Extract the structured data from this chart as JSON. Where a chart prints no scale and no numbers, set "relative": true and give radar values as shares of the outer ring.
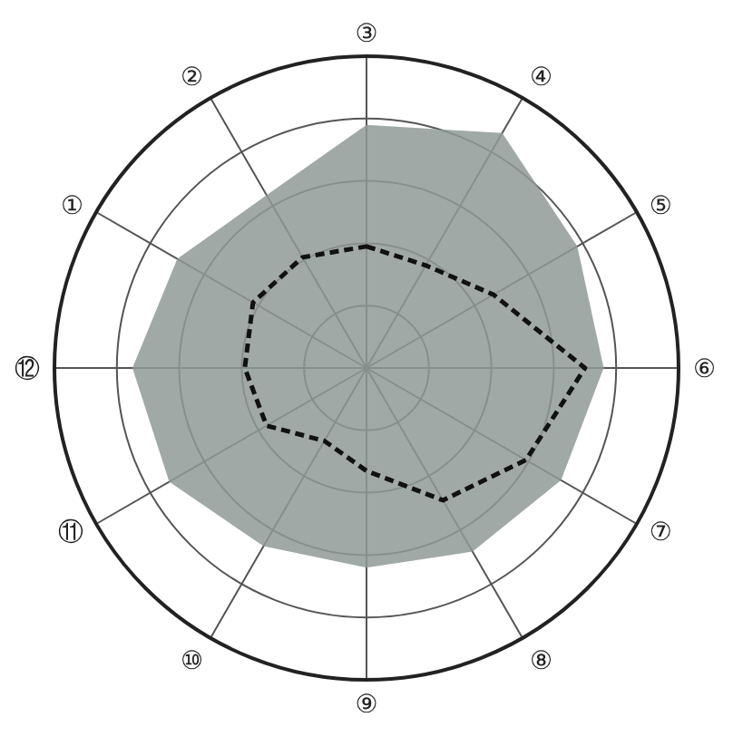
{
  "chart_data": {
    "type": "radar",
    "relative": true,
    "grid": true,
    "legend": false,
    "categories": [
      "③",
      "④",
      "⑤",
      "⑥",
      "⑦",
      "⑧",
      "⑨",
      "⑩",
      "⑪",
      "⑫",
      "①",
      "②"
    ],
    "series": [
      {
        "color": "#8f9a96",
        "values": [
          0.78,
          0.87,
          0.78,
          0.76,
          0.72,
          0.68,
          0.64,
          0.66,
          0.73,
          0.75,
          0.7,
          0.64
        ]
      },
      {
        "color": "#111111",
        "line_style": "dashed",
        "values": [
          0.39,
          0.38,
          0.47,
          0.7,
          0.59,
          0.49,
          0.33,
          0.27,
          0.37,
          0.39,
          0.42,
          0.41
        ]
      }
    ]
  }
}
